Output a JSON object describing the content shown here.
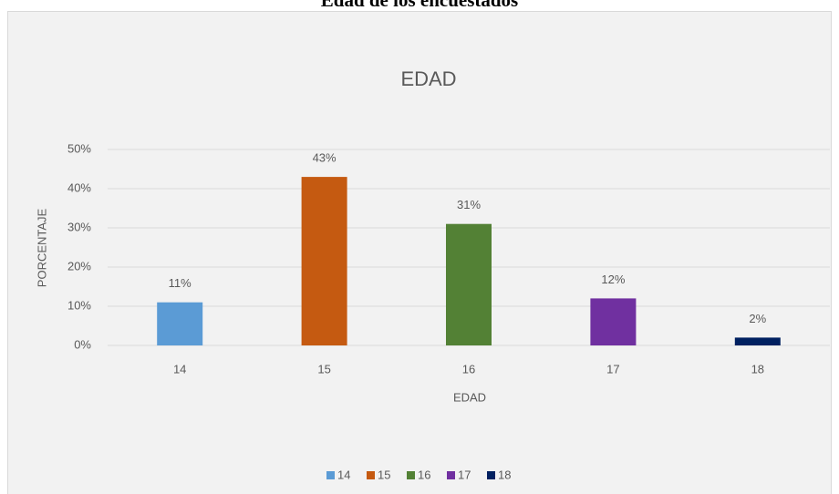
{
  "page_title": "Edad de los encuestados",
  "chart_data": {
    "type": "bar",
    "title": "EDAD",
    "x_label": "EDAD",
    "y_label": "PORCENTAJE",
    "categories": [
      "14",
      "15",
      "16",
      "17",
      "18"
    ],
    "values": [
      11,
      43,
      31,
      12,
      2
    ],
    "value_labels": [
      "11%",
      "43%",
      "31%",
      "12%",
      "2%"
    ],
    "colors": [
      "#5b9bd5",
      "#c55a11",
      "#538135",
      "#7030a0",
      "#002060"
    ],
    "ylim": [
      0,
      50
    ],
    "yticks": [
      {
        "value": 0,
        "label": "0%"
      },
      {
        "value": 10,
        "label": "10%"
      },
      {
        "value": 20,
        "label": "20%"
      },
      {
        "value": 30,
        "label": "30%"
      },
      {
        "value": 40,
        "label": "40%"
      },
      {
        "value": 50,
        "label": "50%"
      }
    ],
    "grid": true,
    "legend": "bottom"
  }
}
